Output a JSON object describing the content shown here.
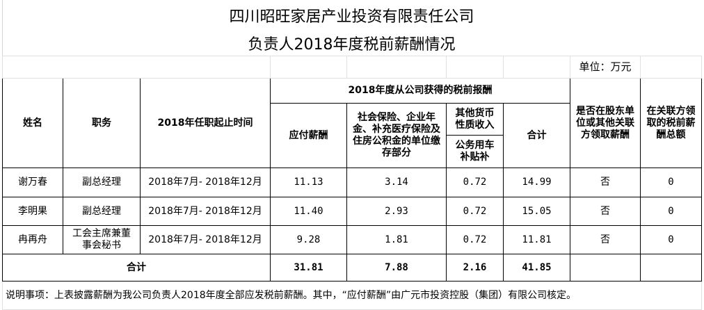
{
  "title": "四川昭旺家居产业投资有限责任公司",
  "subtitle": "负责人2018年度税前薪酬情况",
  "unit": "单位：万元",
  "headers": {
    "name": "姓名",
    "position": "职务",
    "term": "2018年任职起止时间",
    "group": "2018年度从公司获得的税前报酬",
    "salary": "应付薪酬",
    "insurance": "社会保险、企业年金、补充医疗保险及住房公积金的单位缴存部分",
    "other_income": "其他货币性质收入",
    "car_allowance": "公务用车补贴补",
    "subtotal": "合计",
    "shareholder": "是否在股东单位或其他关联方领取薪酬",
    "related_total": "在关联方领取的税前薪酬总额"
  },
  "rows": [
    {
      "name": "谢万春",
      "position": "副总经理",
      "term": "2018年7月- 2018年12月",
      "salary": "11.13",
      "insurance": "3.14",
      "car": "0.72",
      "total": "14.99",
      "shareholder": "否",
      "related": "0"
    },
    {
      "name": "李明果",
      "position": "副总经理",
      "term": "2018年7月- 2018年12月",
      "salary": "11.40",
      "insurance": "2.93",
      "car": "0.72",
      "total": "15.05",
      "shareholder": "否",
      "related": "0"
    },
    {
      "name": "冉再舟",
      "position": "工会主席兼董事会秘书",
      "term": "2018年7月- 2018年12月",
      "salary": "9.28",
      "insurance": "1.81",
      "car": "0.72",
      "total": "11.81",
      "shareholder": "否",
      "related": "0"
    }
  ],
  "totals": {
    "label": "合计",
    "salary": "31.81",
    "insurance": "7.88",
    "car": "2.16",
    "total": "41.85"
  },
  "note": "说明事项：上表披露薪酬为我公司负责人2018年度全部应发税前薪酬。其中，“应付薪酬”由广元市投资控股（集团）有限公司核定。"
}
